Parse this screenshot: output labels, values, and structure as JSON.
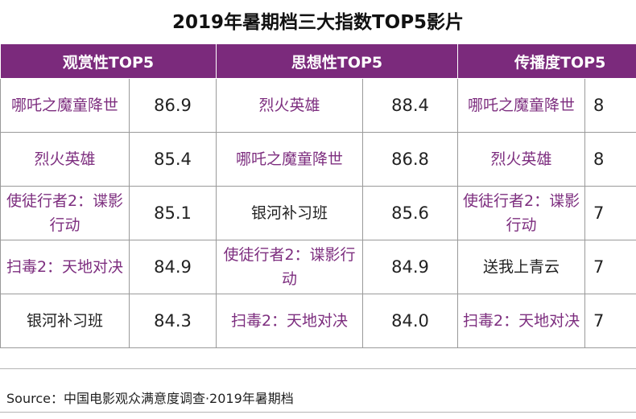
{
  "title": "2019年暑期档三大指数TOP5影片",
  "headers": [
    "观赏性TOP5",
    "思想性TOP5",
    "传播度TOP5"
  ],
  "rows": [
    {
      "a_film": "哪吒之魔童降世",
      "a_score": "86.9",
      "b_film": "烈火英雄",
      "b_score": "88.4",
      "c_film": "哪吒之魔童降世",
      "c_score": "8"
    },
    {
      "a_film": "烈火英雄",
      "a_score": "85.4",
      "b_film": "哪吒之魔童降世",
      "b_score": "86.8",
      "c_film": "烈火英雄",
      "c_score": "8"
    },
    {
      "a_film": "使徒行者2：谍影行动",
      "a_score": "85.1",
      "b_film": "银河补习班",
      "b_score": "85.6",
      "c_film": "使徒行者2：谍影行动",
      "c_score": "7"
    },
    {
      "a_film": "扫毒2：天地对决",
      "a_score": "84.9",
      "b_film": "使徒行者2：谍影行动",
      "b_score": "84.9",
      "c_film": "送我上青云",
      "c_score": "7"
    },
    {
      "a_film": "银河补习班",
      "a_score": "84.3",
      "b_film": "扫毒2：天地对决",
      "b_score": "84.0",
      "c_film": "扫毒2：天地对决",
      "c_score": "7"
    }
  ],
  "source": "Source：中国电影观众满意度调查·2019年暑期档"
}
